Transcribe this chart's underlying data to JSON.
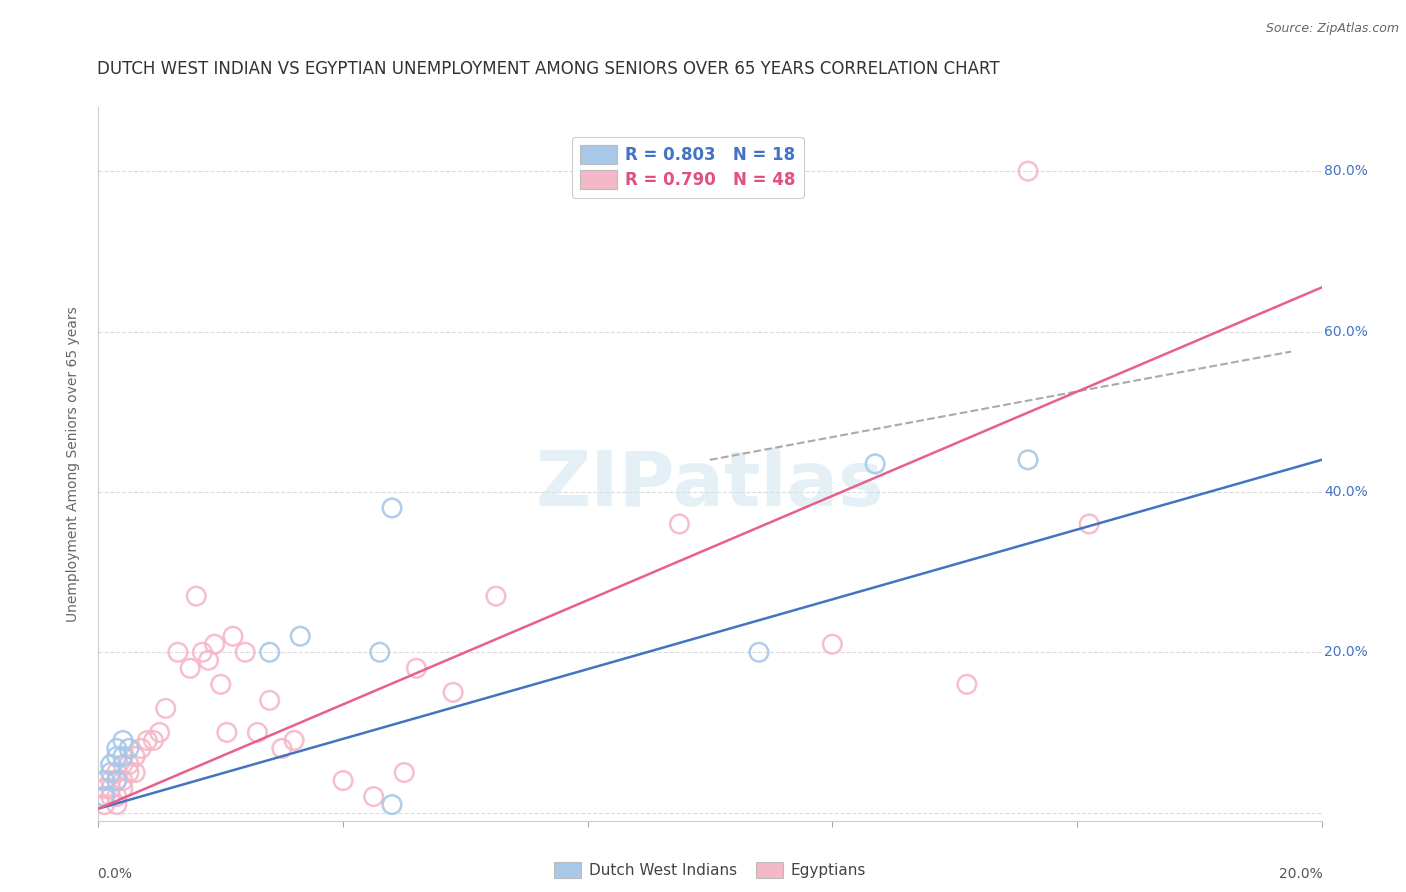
{
  "title": "DUTCH WEST INDIAN VS EGYPTIAN UNEMPLOYMENT AMONG SENIORS OVER 65 YEARS CORRELATION CHART",
  "source": "Source: ZipAtlas.com",
  "ylabel": "Unemployment Among Seniors over 65 years",
  "watermark": "ZIPatlas",
  "xlim": [
    0.0,
    0.2
  ],
  "ylim": [
    -0.01,
    0.88
  ],
  "yticks_right": [
    0.0,
    0.2,
    0.4,
    0.6,
    0.8
  ],
  "ytick_labels_right": [
    "",
    "20.0%",
    "40.0%",
    "60.0%",
    "80.0%"
  ],
  "legend_blue_label": "R = 0.803   N = 18",
  "legend_pink_label": "R = 0.790   N = 48",
  "legend_label_blue": "Dutch West Indians",
  "legend_label_pink": "Egyptians",
  "blue_color": "#a8c8e8",
  "pink_color": "#f4b8c8",
  "blue_line_color": "#4472c4",
  "pink_line_color": "#e8608a",
  "blue_scatter_x": [
    0.001,
    0.001,
    0.002,
    0.002,
    0.003,
    0.003,
    0.003,
    0.004,
    0.004,
    0.005,
    0.028,
    0.033,
    0.046,
    0.048,
    0.048,
    0.108,
    0.127,
    0.152
  ],
  "blue_scatter_y": [
    0.02,
    0.04,
    0.05,
    0.06,
    0.04,
    0.07,
    0.08,
    0.07,
    0.09,
    0.08,
    0.2,
    0.22,
    0.2,
    0.38,
    0.01,
    0.2,
    0.435,
    0.44
  ],
  "pink_scatter_x": [
    0.001,
    0.001,
    0.001,
    0.002,
    0.002,
    0.002,
    0.003,
    0.003,
    0.003,
    0.003,
    0.004,
    0.004,
    0.004,
    0.005,
    0.005,
    0.006,
    0.006,
    0.007,
    0.008,
    0.009,
    0.01,
    0.011,
    0.013,
    0.015,
    0.016,
    0.017,
    0.018,
    0.019,
    0.02,
    0.021,
    0.022,
    0.024,
    0.026,
    0.028,
    0.03,
    0.032,
    0.04,
    0.045,
    0.05,
    0.052,
    0.058,
    0.065,
    0.095,
    0.098,
    0.12,
    0.142,
    0.152,
    0.162
  ],
  "pink_scatter_y": [
    0.01,
    0.02,
    0.03,
    0.02,
    0.03,
    0.04,
    0.01,
    0.02,
    0.04,
    0.05,
    0.03,
    0.04,
    0.06,
    0.05,
    0.06,
    0.05,
    0.07,
    0.08,
    0.09,
    0.09,
    0.1,
    0.13,
    0.2,
    0.18,
    0.27,
    0.2,
    0.19,
    0.21,
    0.16,
    0.1,
    0.22,
    0.2,
    0.1,
    0.14,
    0.08,
    0.09,
    0.04,
    0.02,
    0.05,
    0.18,
    0.15,
    0.27,
    0.36,
    0.8,
    0.21,
    0.16,
    0.8,
    0.36
  ],
  "blue_line_x": [
    0.0,
    0.2
  ],
  "blue_line_y": [
    0.005,
    0.44
  ],
  "pink_line_x": [
    0.0,
    0.2
  ],
  "pink_line_y": [
    0.005,
    0.655
  ],
  "dash_line_x": [
    0.1,
    0.195
  ],
  "dash_line_y": [
    0.44,
    0.575
  ],
  "background_color": "#ffffff",
  "grid_color": "#d8d8d8",
  "title_color": "#333333",
  "right_axis_color": "#4472c4",
  "legend_R_N_color_blue": "#4472c4",
  "legend_R_N_color_pink": "#e05080"
}
